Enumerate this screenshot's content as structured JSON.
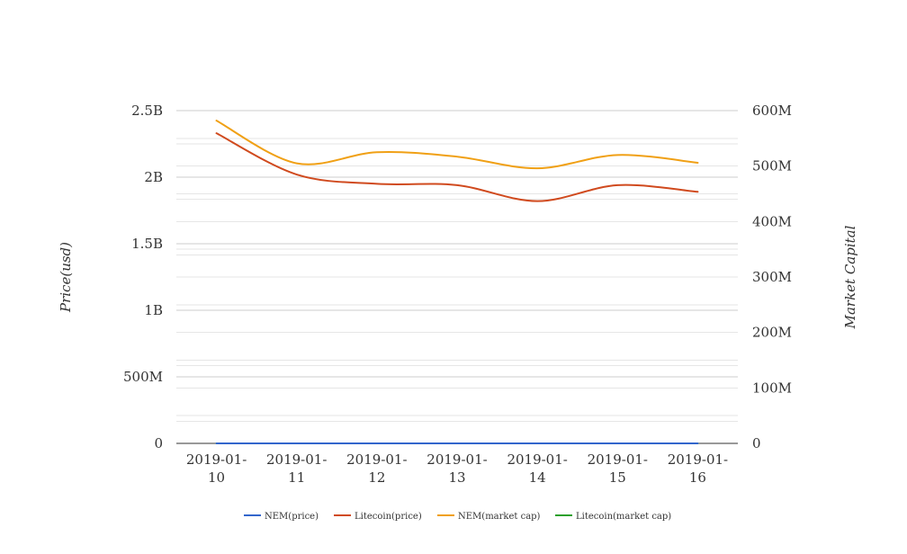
{
  "chart_data": {
    "type": "line",
    "categories": [
      "2019-01-10",
      "2019-01-11",
      "2019-01-12",
      "2019-01-13",
      "2019-01-14",
      "2019-01-15",
      "2019-01-16"
    ],
    "category_label_lines": [
      [
        "2019-01-",
        "10"
      ],
      [
        "2019-01-",
        "11"
      ],
      [
        "2019-01-",
        "12"
      ],
      [
        "2019-01-",
        "13"
      ],
      [
        "2019-01-",
        "14"
      ],
      [
        "2019-01-",
        "15"
      ],
      [
        "2019-01-",
        "16"
      ]
    ],
    "ylabel_left": "Price(usd)",
    "ylabel_right": "Market Capital",
    "ylim_left": [
      0,
      2500000000
    ],
    "ylim_right": [
      0,
      600000000
    ],
    "left_ticks": [
      {
        "value": 0,
        "label": "0"
      },
      {
        "value": 500000000,
        "label": "500M"
      },
      {
        "value": 1000000000,
        "label": "1B"
      },
      {
        "value": 1500000000,
        "label": "1.5B"
      },
      {
        "value": 2000000000,
        "label": "2B"
      },
      {
        "value": 2500000000,
        "label": "2.5B"
      }
    ],
    "right_ticks": [
      {
        "value": 0,
        "label": "0"
      },
      {
        "value": 100000000,
        "label": "100M"
      },
      {
        "value": 200000000,
        "label": "200M"
      },
      {
        "value": 300000000,
        "label": "300M"
      },
      {
        "value": 400000000,
        "label": "400M"
      },
      {
        "value": 500000000,
        "label": "500M"
      },
      {
        "value": 600000000,
        "label": "600M"
      }
    ],
    "grid": true,
    "legend_position": "bottom",
    "series": [
      {
        "name": "NEM(price)",
        "axis": "left",
        "color": "#3366cc",
        "values": [
          0.065,
          0.066,
          0.064,
          0.063,
          0.058,
          0.064,
          0.062
        ]
      },
      {
        "name": "Litecoin(price)",
        "axis": "left",
        "color": "#d04a1e",
        "values": [
          2330000000,
          2020000000,
          1950000000,
          1940000000,
          1820000000,
          1940000000,
          1890000000
        ]
      },
      {
        "name": "NEM(market cap)",
        "axis": "right",
        "color": "#f0a015",
        "values": [
          582000000,
          505000000,
          525000000,
          517000000,
          496000000,
          520000000,
          506000000
        ]
      },
      {
        "name": "Litecoin(market cap)",
        "axis": "right",
        "color": "#2ca02c",
        "values": [
          33,
          32,
          32,
          32,
          31,
          32,
          31
        ]
      }
    ]
  }
}
